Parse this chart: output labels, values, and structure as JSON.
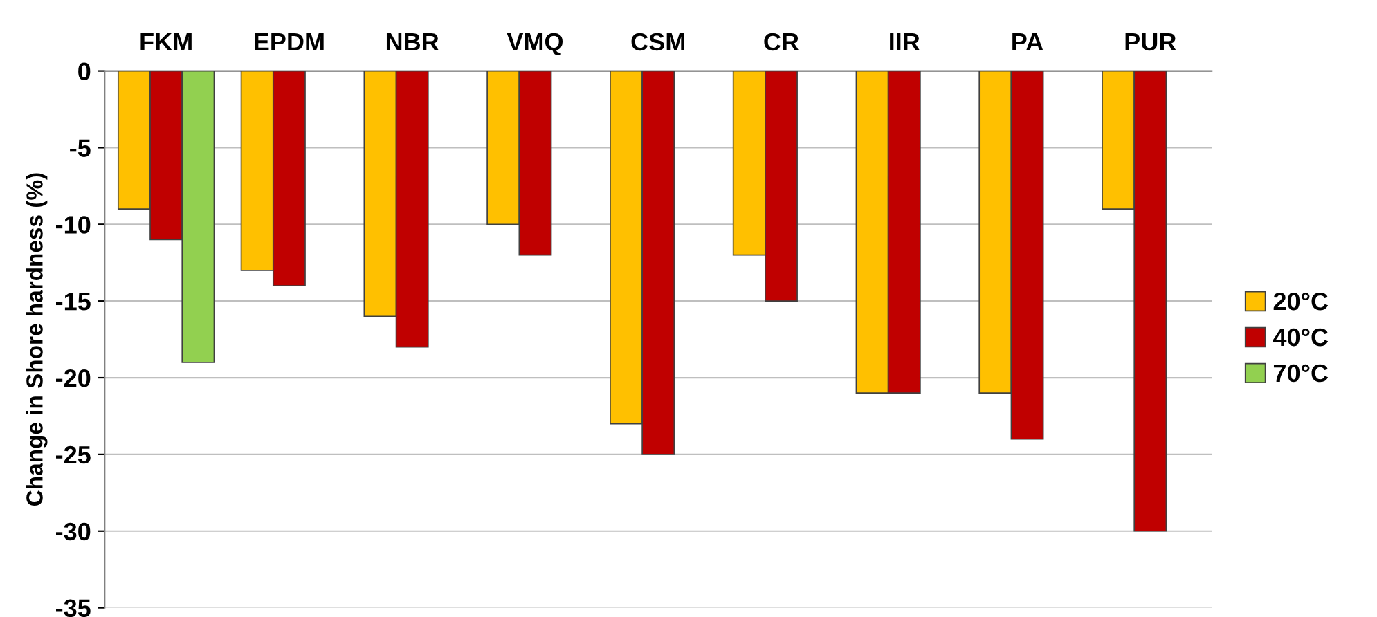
{
  "chart_data": {
    "type": "bar",
    "ylabel": "Change in Shore hardness (%)",
    "categories": [
      "FKM",
      "EPDM",
      "NBR",
      "VMQ",
      "CSM",
      "CR",
      "IIR",
      "PA",
      "PUR"
    ],
    "series": [
      {
        "name": "20°C",
        "color": "#ffc000",
        "values": [
          -9,
          -13,
          -16,
          -10,
          -23,
          -12,
          -21,
          -21,
          -9
        ]
      },
      {
        "name": "40°C",
        "color": "#c00000",
        "values": [
          -11,
          -14,
          -18,
          -12,
          -25,
          -15,
          -21,
          -24,
          -30
        ]
      },
      {
        "name": "70°C",
        "color": "#92d050",
        "values": [
          -19,
          null,
          null,
          null,
          null,
          null,
          null,
          null,
          null
        ]
      }
    ],
    "ylim": [
      -35,
      0
    ],
    "yticks": [
      -35,
      -30,
      -25,
      -20,
      -15,
      -10,
      -5,
      0
    ],
    "grid": "y",
    "legend": "right"
  }
}
